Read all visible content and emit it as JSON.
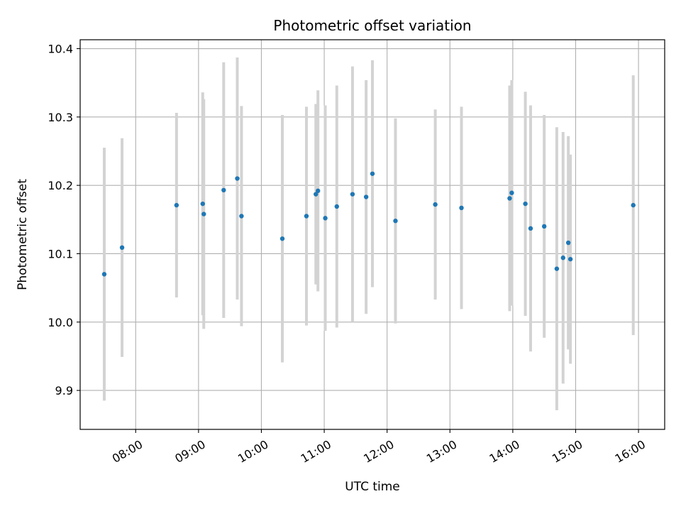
{
  "chart_data": {
    "type": "scatter",
    "title": "Photometric offset variation",
    "xlabel": "UTC time",
    "ylabel": "Photometric offset",
    "x_ticks": [
      "08:00",
      "09:00",
      "10:00",
      "11:00",
      "12:00",
      "13:00",
      "14:00",
      "15:00",
      "16:00"
    ],
    "y_ticks": [
      "9.9",
      "10.0",
      "10.1",
      "10.2",
      "10.3",
      "10.4"
    ],
    "xlim": [
      "07:07",
      "16:25"
    ],
    "ylim": [
      9.843,
      10.413
    ],
    "grid": true,
    "colors": {
      "point": "#1f77b4",
      "errorbar": "#d3d3d3",
      "grid": "#b0b0b0"
    },
    "series": [
      {
        "points": [
          {
            "x": "07:30",
            "y": 10.07,
            "err": 0.185
          },
          {
            "x": "07:47",
            "y": 10.109,
            "err": 0.16
          },
          {
            "x": "08:39",
            "y": 10.171,
            "err": 0.135
          },
          {
            "x": "09:04",
            "y": 10.173,
            "err": 0.163
          },
          {
            "x": "09:05",
            "y": 10.158,
            "err": 0.168
          },
          {
            "x": "09:24",
            "y": 10.193,
            "err": 0.187
          },
          {
            "x": "09:37",
            "y": 10.21,
            "err": 0.177
          },
          {
            "x": "09:41",
            "y": 10.155,
            "err": 0.161
          },
          {
            "x": "10:20",
            "y": 10.122,
            "err": 0.181
          },
          {
            "x": "10:43",
            "y": 10.155,
            "err": 0.16
          },
          {
            "x": "10:52",
            "y": 10.187,
            "err": 0.132
          },
          {
            "x": "10:54",
            "y": 10.192,
            "err": 0.147
          },
          {
            "x": "11:01",
            "y": 10.152,
            "err": 0.165
          },
          {
            "x": "11:12",
            "y": 10.169,
            "err": 0.177
          },
          {
            "x": "11:27",
            "y": 10.187,
            "err": 0.187
          },
          {
            "x": "11:40",
            "y": 10.183,
            "err": 0.171
          },
          {
            "x": "11:46",
            "y": 10.217,
            "err": 0.166
          },
          {
            "x": "12:08",
            "y": 10.148,
            "err": 0.15
          },
          {
            "x": "12:46",
            "y": 10.172,
            "err": 0.139
          },
          {
            "x": "13:11",
            "y": 10.167,
            "err": 0.148
          },
          {
            "x": "13:57",
            "y": 10.181,
            "err": 0.165
          },
          {
            "x": "13:59",
            "y": 10.189,
            "err": 0.165
          },
          {
            "x": "14:12",
            "y": 10.173,
            "err": 0.164
          },
          {
            "x": "14:17",
            "y": 10.137,
            "err": 0.18
          },
          {
            "x": "14:30",
            "y": 10.14,
            "err": 0.163
          },
          {
            "x": "14:42",
            "y": 10.078,
            "err": 0.207
          },
          {
            "x": "14:48",
            "y": 10.094,
            "err": 0.184
          },
          {
            "x": "14:53",
            "y": 10.116,
            "err": 0.156
          },
          {
            "x": "14:55",
            "y": 10.092,
            "err": 0.153
          },
          {
            "x": "15:55",
            "y": 10.171,
            "err": 0.19
          }
        ]
      }
    ]
  }
}
